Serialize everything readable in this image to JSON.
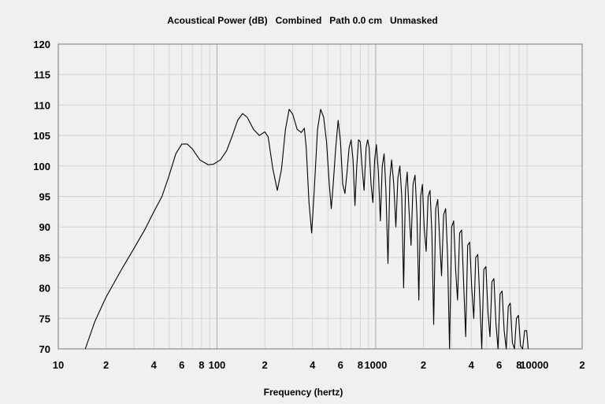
{
  "chart_data": {
    "type": "line",
    "title": "Acoustical Power (dB)   Combined   Path 0.0 cm   Unmasked",
    "xlabel": "Frequency (hertz)",
    "ylabel": "",
    "x_scale": "log",
    "xlim": [
      10,
      20000
    ],
    "ylim": [
      70,
      120
    ],
    "grid": true,
    "y_ticks": [
      "70",
      "75",
      "80",
      "85",
      "90",
      "95",
      "100",
      "105",
      "110",
      "115",
      "120"
    ],
    "x_ticks": [
      {
        "value": 10,
        "label": "10"
      },
      {
        "value": 20,
        "label": "2"
      },
      {
        "value": 40,
        "label": "4"
      },
      {
        "value": 60,
        "label": "6"
      },
      {
        "value": 80,
        "label": "8"
      },
      {
        "value": 100,
        "label": "100"
      },
      {
        "value": 200,
        "label": "2"
      },
      {
        "value": 400,
        "label": "4"
      },
      {
        "value": 600,
        "label": "6"
      },
      {
        "value": 800,
        "label": "8"
      },
      {
        "value": 1000,
        "label": "1000"
      },
      {
        "value": 2000,
        "label": "2"
      },
      {
        "value": 4000,
        "label": "4"
      },
      {
        "value": 6000,
        "label": "6"
      },
      {
        "value": 8000,
        "label": "8"
      },
      {
        "value": 10000,
        "label": "10000"
      },
      {
        "value": 20000,
        "label": "2"
      }
    ],
    "series": [
      {
        "color": "#000000",
        "points": [
          [
            14.8,
            70
          ],
          [
            17,
            74.5
          ],
          [
            20,
            78.5
          ],
          [
            25,
            83
          ],
          [
            30,
            86.5
          ],
          [
            35,
            89.5
          ],
          [
            40,
            92.5
          ],
          [
            45,
            95
          ],
          [
            50,
            98.5
          ],
          [
            55,
            102
          ],
          [
            60,
            103.6
          ],
          [
            65,
            103.6
          ],
          [
            70,
            102.8
          ],
          [
            78,
            101
          ],
          [
            88,
            100.2
          ],
          [
            95,
            100.3
          ],
          [
            105,
            101
          ],
          [
            115,
            102.5
          ],
          [
            125,
            105
          ],
          [
            135,
            107.5
          ],
          [
            145,
            108.6
          ],
          [
            155,
            108
          ],
          [
            170,
            106
          ],
          [
            185,
            105
          ],
          [
            200,
            105.6
          ],
          [
            210,
            104.8
          ],
          [
            225,
            99.5
          ],
          [
            240,
            96
          ],
          [
            255,
            99.5
          ],
          [
            270,
            106
          ],
          [
            285,
            109.3
          ],
          [
            300,
            108.5
          ],
          [
            320,
            106
          ],
          [
            340,
            105.5
          ],
          [
            355,
            106.2
          ],
          [
            365,
            103
          ],
          [
            380,
            94
          ],
          [
            395,
            89
          ],
          [
            410,
            96
          ],
          [
            430,
            106
          ],
          [
            450,
            109.3
          ],
          [
            470,
            108
          ],
          [
            490,
            104
          ],
          [
            510,
            97
          ],
          [
            525,
            93
          ],
          [
            540,
            97
          ],
          [
            560,
            103
          ],
          [
            580,
            107.5
          ],
          [
            600,
            104
          ],
          [
            620,
            97
          ],
          [
            640,
            95.5
          ],
          [
            660,
            99
          ],
          [
            680,
            103
          ],
          [
            700,
            104.3
          ],
          [
            720,
            101
          ],
          [
            740,
            93.5
          ],
          [
            760,
            100
          ],
          [
            780,
            104.3
          ],
          [
            800,
            104
          ],
          [
            820,
            100
          ],
          [
            845,
            96
          ],
          [
            870,
            103
          ],
          [
            890,
            104.3
          ],
          [
            910,
            103
          ],
          [
            935,
            97
          ],
          [
            960,
            94
          ],
          [
            985,
            101
          ],
          [
            1010,
            103.5
          ],
          [
            1040,
            99
          ],
          [
            1070,
            91
          ],
          [
            1100,
            100
          ],
          [
            1130,
            102
          ],
          [
            1160,
            96
          ],
          [
            1195,
            84
          ],
          [
            1230,
            98
          ],
          [
            1260,
            101
          ],
          [
            1300,
            97
          ],
          [
            1340,
            90
          ],
          [
            1380,
            98
          ],
          [
            1420,
            100
          ],
          [
            1460,
            95
          ],
          [
            1500,
            80
          ],
          [
            1540,
            96
          ],
          [
            1580,
            99
          ],
          [
            1620,
            93
          ],
          [
            1670,
            87
          ],
          [
            1720,
            97
          ],
          [
            1770,
            98.5
          ],
          [
            1820,
            92
          ],
          [
            1870,
            78
          ],
          [
            1920,
            95
          ],
          [
            1970,
            97
          ],
          [
            2020,
            90
          ],
          [
            2080,
            86
          ],
          [
            2140,
            95
          ],
          [
            2200,
            96
          ],
          [
            2260,
            89
          ],
          [
            2320,
            74
          ],
          [
            2390,
            93
          ],
          [
            2460,
            94.5
          ],
          [
            2530,
            88
          ],
          [
            2600,
            82
          ],
          [
            2680,
            92
          ],
          [
            2760,
            93
          ],
          [
            2840,
            85
          ],
          [
            2920,
            70
          ],
          [
            3010,
            90
          ],
          [
            3100,
            91
          ],
          [
            3190,
            83
          ],
          [
            3280,
            78
          ],
          [
            3380,
            89
          ],
          [
            3480,
            89.5
          ],
          [
            3580,
            81
          ],
          [
            3690,
            72
          ],
          [
            3800,
            87
          ],
          [
            3910,
            87.5
          ],
          [
            4030,
            80
          ],
          [
            4150,
            75
          ],
          [
            4270,
            85
          ],
          [
            4400,
            85.5
          ],
          [
            4530,
            78
          ],
          [
            4660,
            70
          ],
          [
            4800,
            83
          ],
          [
            4950,
            83.5
          ],
          [
            5100,
            76
          ],
          [
            5250,
            72
          ],
          [
            5400,
            81
          ],
          [
            5560,
            81.5
          ],
          [
            5730,
            74
          ],
          [
            5900,
            70
          ],
          [
            6080,
            79
          ],
          [
            6260,
            79.5
          ],
          [
            6450,
            73
          ],
          [
            6650,
            70
          ],
          [
            6850,
            77
          ],
          [
            7050,
            77.5
          ],
          [
            7270,
            71
          ],
          [
            7490,
            70
          ],
          [
            7710,
            75
          ],
          [
            7940,
            75.5
          ],
          [
            8180,
            70.5
          ],
          [
            8430,
            70
          ],
          [
            8680,
            73
          ],
          [
            8940,
            73
          ],
          [
            9150,
            70
          ]
        ]
      }
    ]
  }
}
